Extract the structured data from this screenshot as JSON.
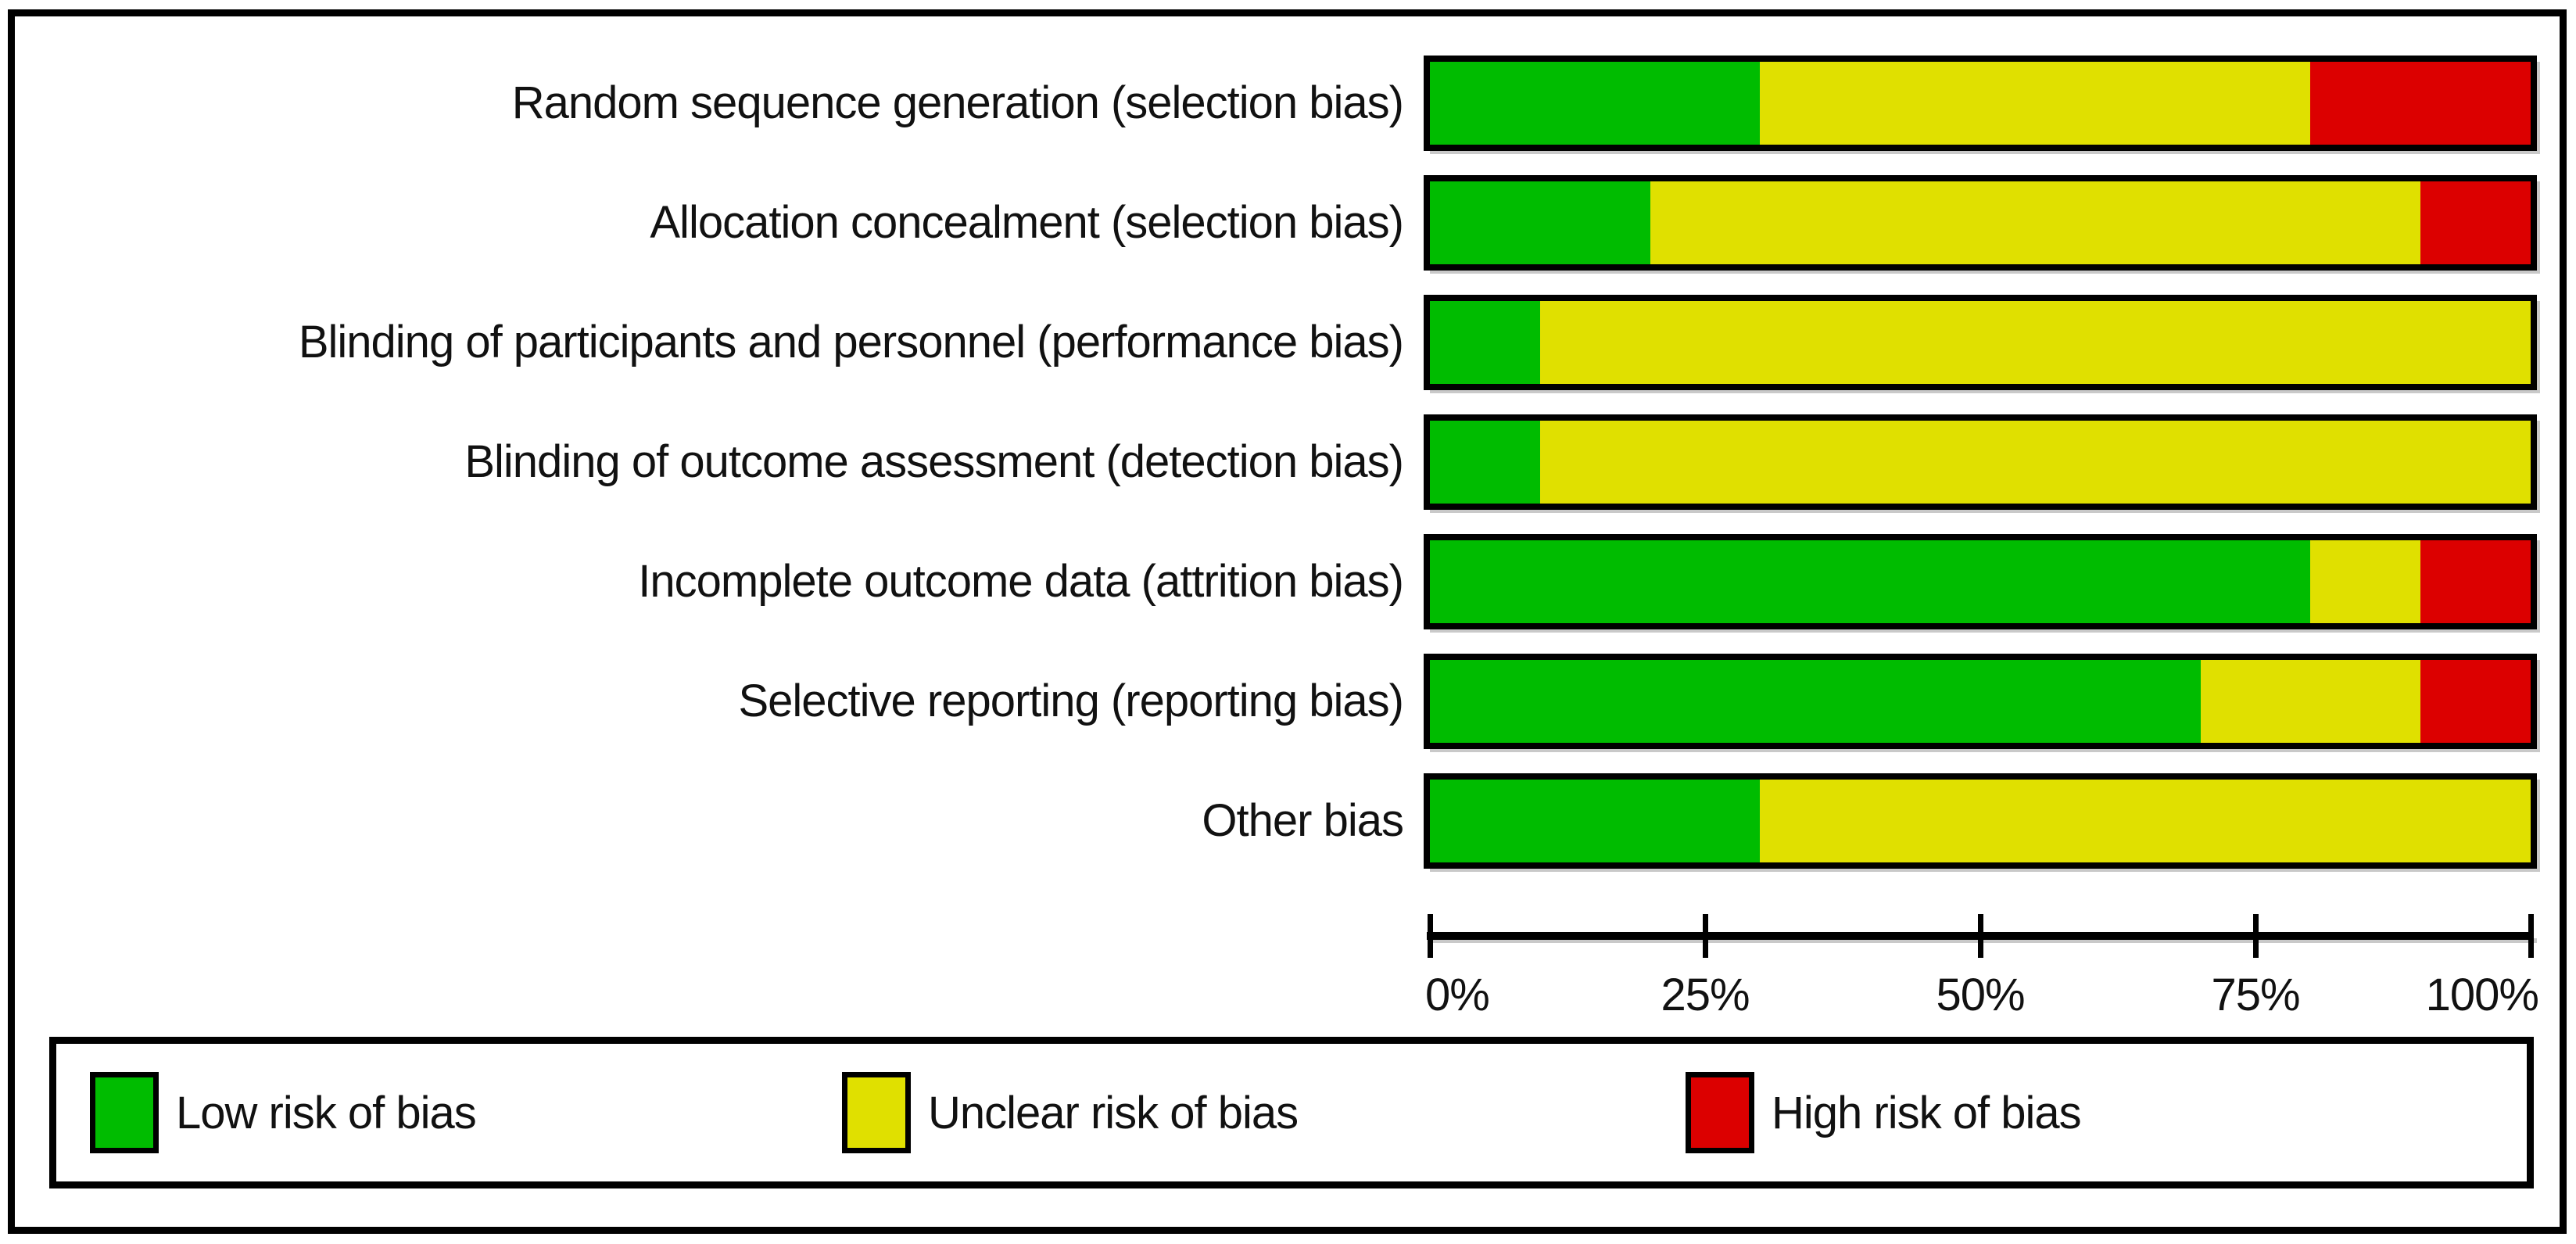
{
  "chart_data": {
    "type": "bar",
    "variant": "horizontal-stacked",
    "title": "",
    "categories": [
      "Random sequence generation (selection bias)",
      "Allocation concealment (selection bias)",
      "Blinding of participants and personnel (performance bias)",
      "Blinding of outcome assessment (detection bias)",
      "Incomplete outcome data (attrition bias)",
      "Selective reporting (reporting bias)",
      "Other bias"
    ],
    "series": [
      {
        "name": "Low risk of bias",
        "color": "#00BC00",
        "values": [
          30,
          20,
          10,
          10,
          80,
          70,
          30
        ]
      },
      {
        "name": "Unclear risk of bias",
        "color": "#E0E000",
        "values": [
          50,
          70,
          90,
          90,
          10,
          20,
          70
        ]
      },
      {
        "name": "High risk of bias",
        "color": "#DC0000",
        "values": [
          20,
          10,
          0,
          0,
          10,
          10,
          0
        ]
      }
    ],
    "x_axis": {
      "min": 0,
      "max": 100,
      "tick_values": [
        0,
        25,
        50,
        75,
        100
      ],
      "tick_labels": [
        "0%",
        "25%",
        "50%",
        "75%",
        "100%"
      ]
    },
    "legend": {
      "position": "bottom",
      "items": [
        "Low risk of bias",
        "Unclear risk of bias",
        "High risk of bias"
      ]
    },
    "grid": false,
    "background": "#FFFFFF",
    "border_color": "#000000"
  }
}
